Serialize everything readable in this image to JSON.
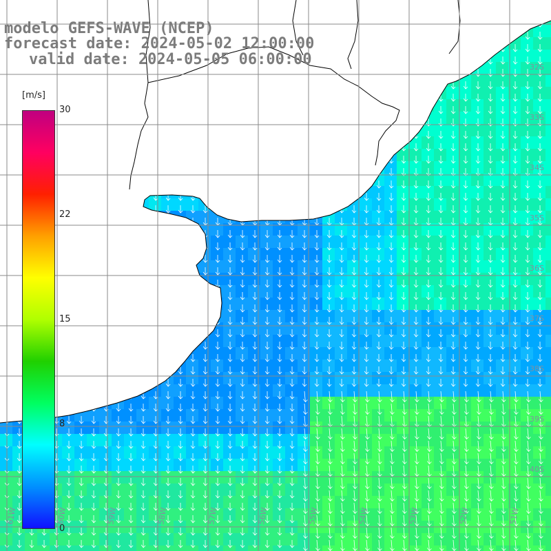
{
  "title": {
    "model": "modelo GEFS-WAVE (NCEP)",
    "forecast": "forecast date: 2024-05-02 12:00:00",
    "valid": "valid date: 2024-05-05 06:00:00"
  },
  "colorbar": {
    "unit": "[m/s]",
    "ticks": [
      "30",
      "22",
      "15",
      "8",
      "0"
    ],
    "tick_values": [
      30,
      22,
      15,
      8,
      0
    ],
    "range": [
      0,
      30
    ],
    "colors": [
      "#1010ff",
      "#0090ff",
      "#00ffff",
      "#00ff60",
      "#20d000",
      "#b0ff00",
      "#ffff00",
      "#ffa000",
      "#ff2000",
      "#ff0060",
      "#c00080"
    ]
  },
  "grid": {
    "lat_labels": [
      "32S",
      "33S",
      "34S",
      "35S",
      "36S",
      "37S",
      "38S",
      "39S",
      "40S"
    ],
    "lon_labels": [
      "61W",
      "60W",
      "59W",
      "58W",
      "57W",
      "56W",
      "55W",
      "54W",
      "53W",
      "52W",
      "51W"
    ]
  },
  "colors": {
    "land": "#ffffff",
    "coast": "#000000",
    "grid": "#8a8a8a",
    "arrow": "#ffffff",
    "title_text": "#7c7c7c"
  },
  "field": {
    "variable": "wind speed",
    "arrow_direction": "southwest-to-south flow"
  }
}
